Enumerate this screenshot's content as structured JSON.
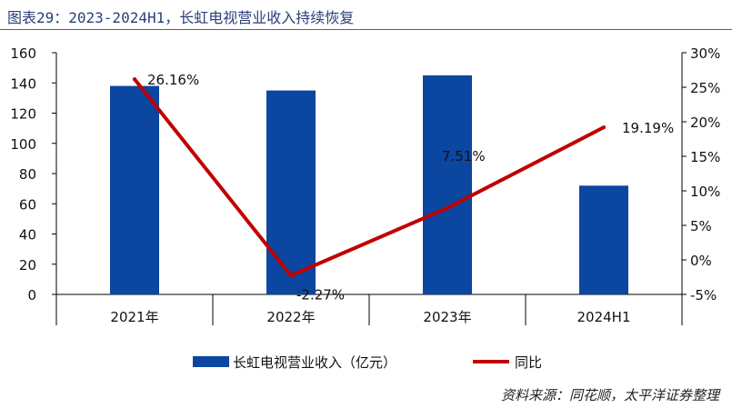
{
  "title": "图表29：2023-2024H1，长虹电视营业收入持续恢复",
  "source": "资料来源：同花顺，太平洋证券整理",
  "colors": {
    "bar": "#0b46a0",
    "line": "#c00000",
    "axis": "#000000",
    "title": "#2a3f7a"
  },
  "chart_data": {
    "type": "bar",
    "categories": [
      "2021年",
      "2022年",
      "2023年",
      "2024H1"
    ],
    "series": [
      {
        "name": "长虹电视营业收入（亿元）",
        "type": "bar",
        "axis": "left",
        "values": [
          138,
          135,
          145,
          72
        ]
      },
      {
        "name": "同比",
        "type": "line",
        "axis": "right",
        "values": [
          26.16,
          -2.27,
          7.51,
          19.19
        ],
        "labels": [
          "26.16%",
          "-2.27%",
          "7.51%",
          "19.19%"
        ]
      }
    ],
    "y_left": {
      "min": 0,
      "max": 160,
      "ticks": [
        "0",
        "20",
        "40",
        "60",
        "80",
        "100",
        "120",
        "140",
        "160"
      ]
    },
    "y_right": {
      "min": -5,
      "max": 30,
      "ticks": [
        "-5%",
        "0%",
        "5%",
        "10%",
        "15%",
        "20%",
        "25%",
        "30%"
      ]
    },
    "legend_position": "bottom",
    "grid": false
  }
}
